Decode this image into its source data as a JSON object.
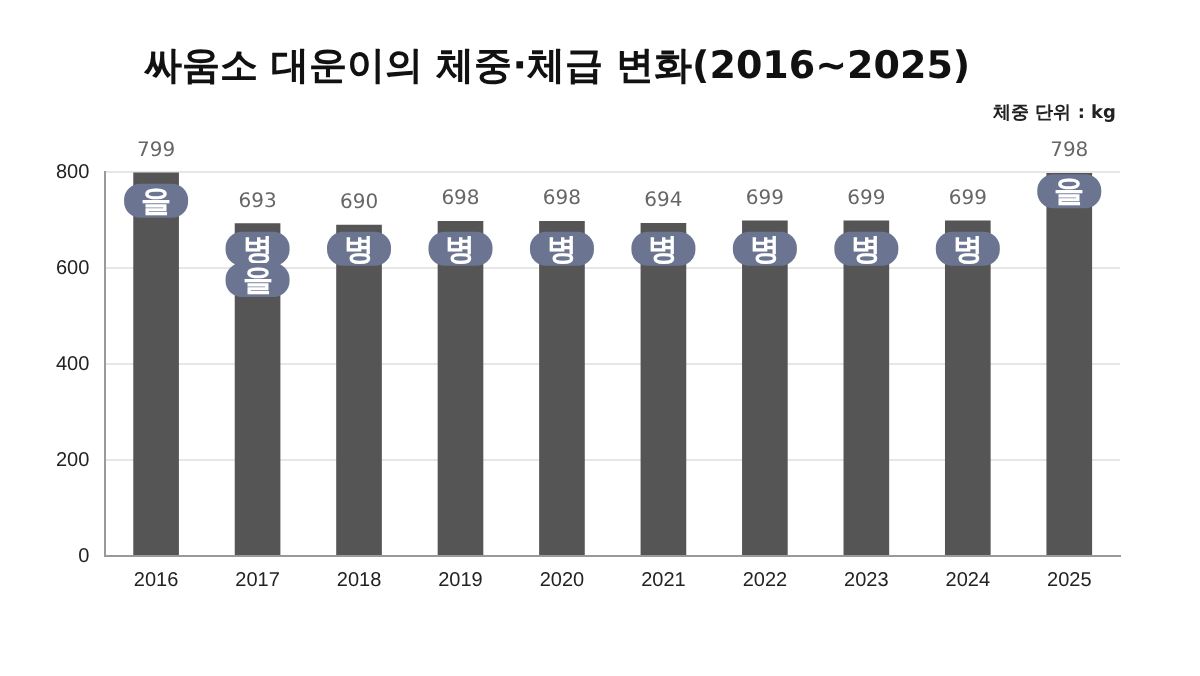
{
  "chart_data": {
    "type": "bar",
    "title": "싸움소 대운이의 체중·체급 변화(2016~2025)",
    "subtitle": "체중 단위 : kg",
    "categories": [
      "2016",
      "2017",
      "2018",
      "2019",
      "2020",
      "2021",
      "2022",
      "2023",
      "2024",
      "2025"
    ],
    "values": [
      799,
      693,
      690,
      698,
      698,
      694,
      699,
      699,
      699,
      798
    ],
    "color": "#555555",
    "ylim": [
      0,
      800
    ],
    "yticks": [
      0,
      200,
      400,
      600,
      800
    ],
    "grid": "y",
    "data_labels": true,
    "annotations": [
      {
        "text": "을",
        "x": "2016",
        "y": 740
      },
      {
        "text": "병",
        "x": "2017",
        "y": 640
      },
      {
        "text": "을",
        "x": "2017",
        "y": 575
      },
      {
        "text": "병",
        "x": "2018",
        "y": 640
      },
      {
        "text": "병",
        "x": "2019",
        "y": 640
      },
      {
        "text": "병",
        "x": "2020",
        "y": 640
      },
      {
        "text": "병",
        "x": "2021",
        "y": 640
      },
      {
        "text": "병",
        "x": "2022",
        "y": 640
      },
      {
        "text": "병",
        "x": "2023",
        "y": 640
      },
      {
        "text": "병",
        "x": "2024",
        "y": 640
      },
      {
        "text": "을",
        "x": "2025",
        "y": 760
      }
    ]
  }
}
